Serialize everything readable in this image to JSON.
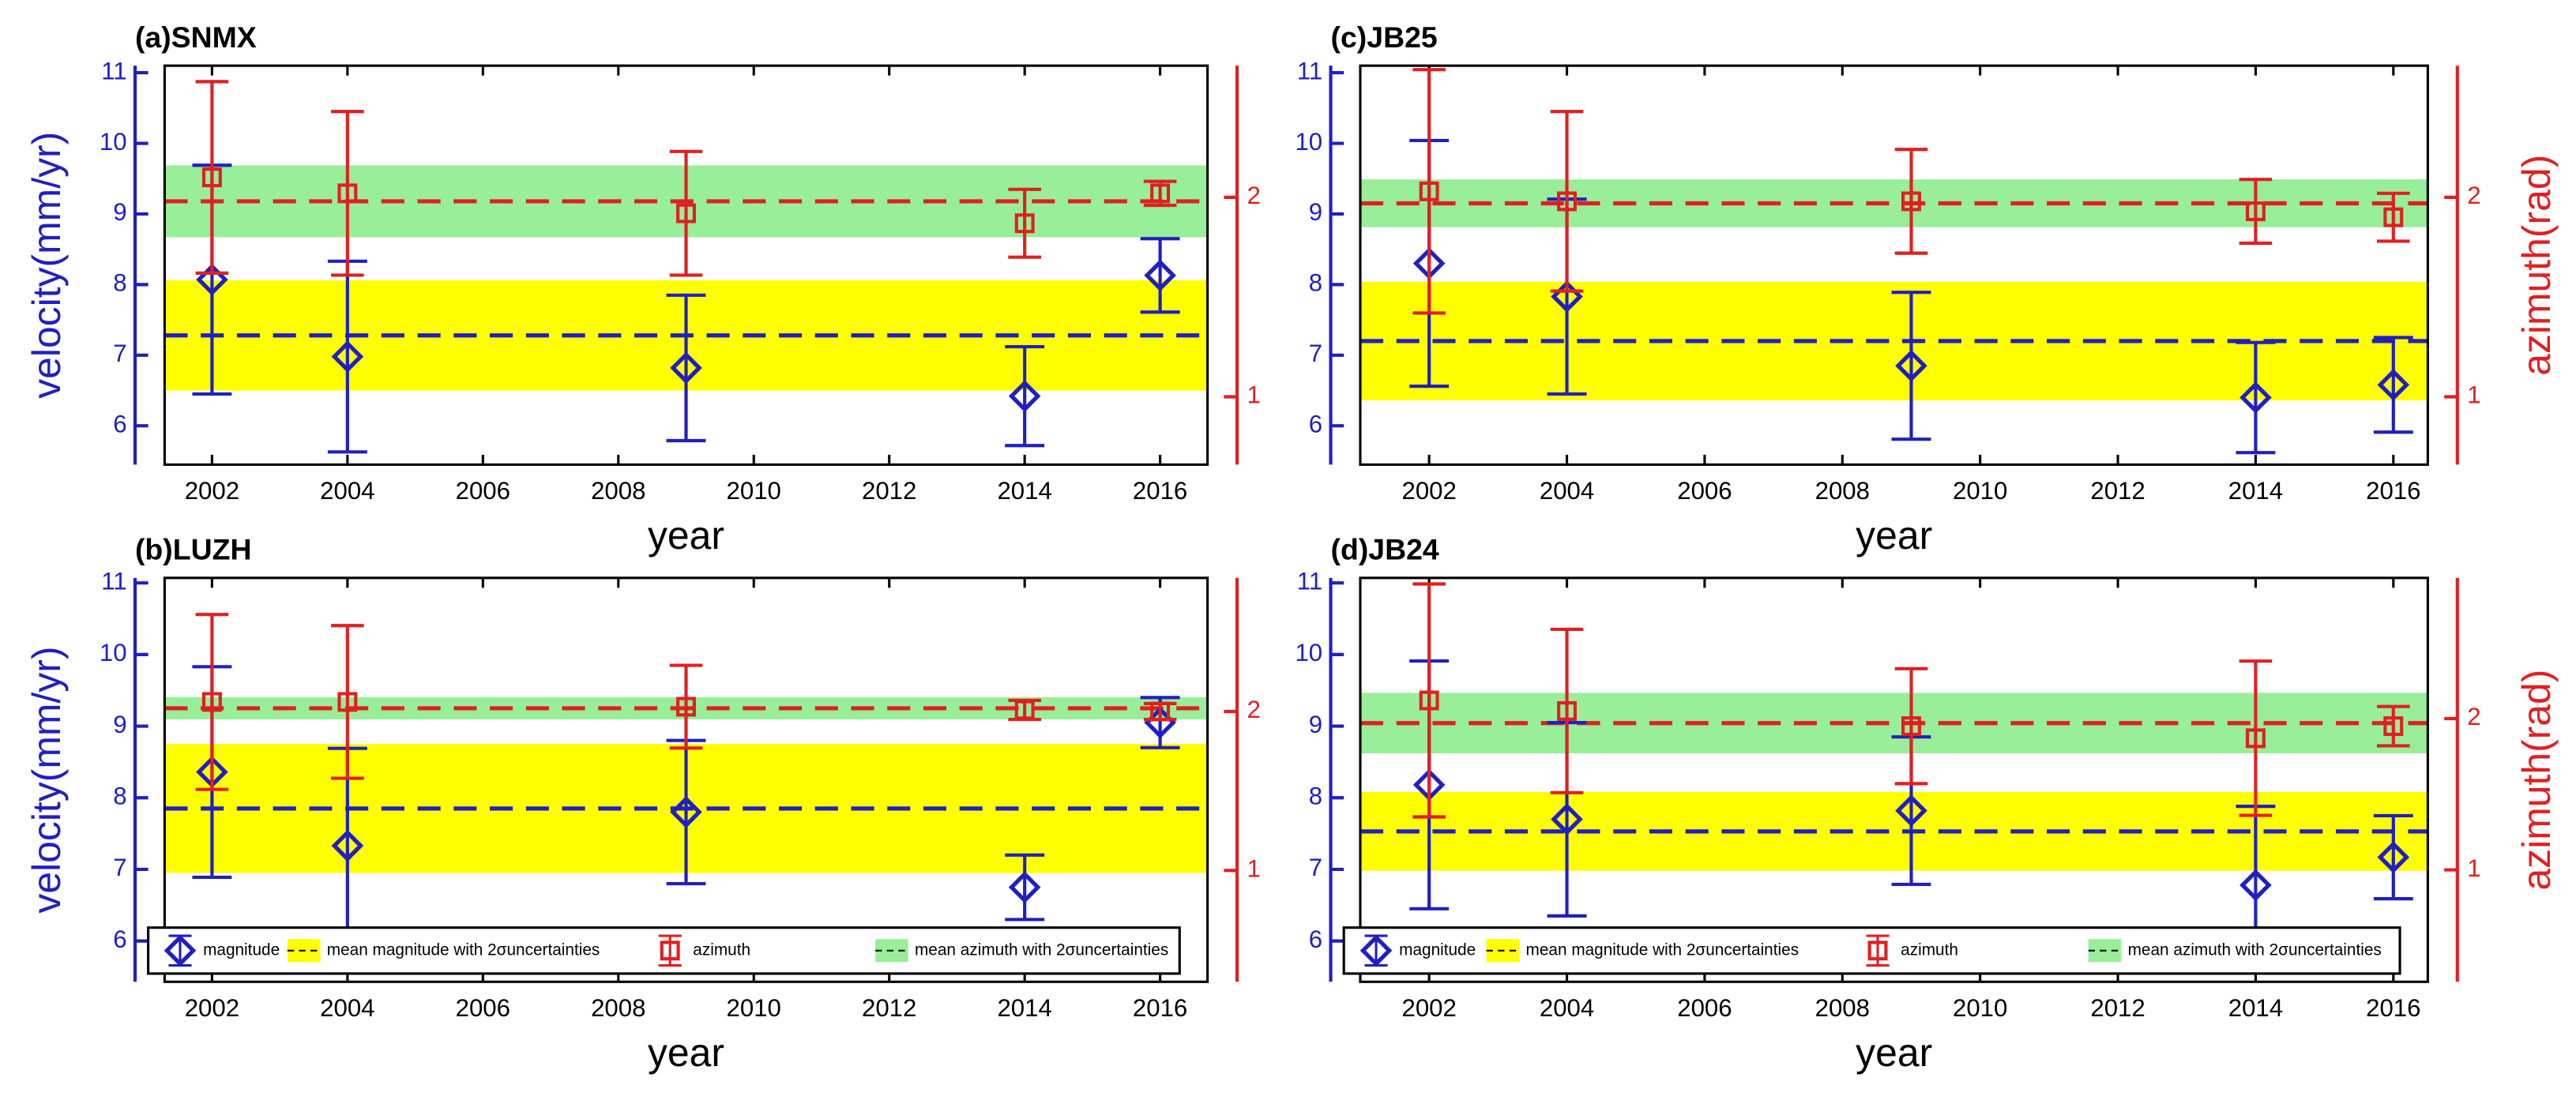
{
  "chart_data": [
    {
      "type": "errorbar",
      "title": "(a)SNMX",
      "xlabel": "year",
      "ylabel": "velocity(mm/yr)",
      "x": [
        2002,
        2004,
        2009,
        2014,
        2016
      ],
      "xlim": [
        2001.3,
        2016.7
      ],
      "xticks": [
        2002,
        2004,
        2006,
        2008,
        2010,
        2012,
        2014,
        2016
      ],
      "ylim": [
        5.45,
        11.1
      ],
      "yticks": [
        6,
        7,
        8,
        9,
        10,
        11
      ],
      "y2lim": [
        0.66,
        2.66
      ],
      "y2ticks": [
        1,
        2
      ],
      "series": [
        {
          "color": "#2020c0",
          "marker": "diamond",
          "values": [
            8.07,
            6.98,
            6.82,
            6.42,
            8.13
          ],
          "errors": [
            1.62,
            1.35,
            1.03,
            0.7,
            0.52
          ]
        },
        {
          "color": "#e02020",
          "marker": "square",
          "axis": "y2",
          "values": [
            2.1,
            2.02,
            1.92,
            1.87,
            2.02
          ],
          "errors": [
            0.48,
            0.41,
            0.31,
            0.17,
            0.06
          ]
        }
      ],
      "means": [
        {
          "color": "#2020c0",
          "band_color": "#ffff00",
          "value": 7.28,
          "uncertainty": 0.78
        },
        {
          "color": "#e02020",
          "band_color": "#99ee99",
          "axis": "y2",
          "value": 1.98,
          "uncertainty": 0.18
        }
      ]
    },
    {
      "type": "errorbar",
      "title": "(b)LUZH",
      "xlabel": "year",
      "ylabel": "velocity(mm/yr)",
      "x": [
        2002,
        2004,
        2009,
        2014,
        2016
      ],
      "xlim": [
        2001.3,
        2016.7
      ],
      "xticks": [
        2002,
        2004,
        2006,
        2008,
        2010,
        2012,
        2014,
        2016
      ],
      "ylim": [
        5.43,
        11.07
      ],
      "yticks": [
        6,
        7,
        8,
        9,
        10,
        11
      ],
      "y2lim": [
        0.3,
        2.84
      ],
      "y2ticks": [
        1,
        2
      ],
      "series": [
        {
          "name": "magnitude",
          "color": "#2020c0",
          "marker": "diamond",
          "values": [
            8.36,
            7.33,
            7.8,
            6.75,
            9.05
          ],
          "errors": [
            1.47,
            1.36,
            1.0,
            0.45,
            0.35
          ]
        },
        {
          "name": "azimuth",
          "color": "#e02020",
          "marker": "square",
          "axis": "y2",
          "values": [
            2.06,
            2.06,
            2.03,
            2.01,
            2.0
          ],
          "errors": [
            0.55,
            0.48,
            0.26,
            0.06,
            0.05
          ]
        }
      ],
      "means": [
        {
          "name": "mean magnitude with 2σuncertainties",
          "color": "#2020c0",
          "band_color": "#ffff00",
          "value": 7.85,
          "uncertainty": 0.9
        },
        {
          "name": "mean azimuth with 2σuncertainties",
          "color": "#e02020",
          "band_color": "#99ee99",
          "axis": "y2",
          "value": 2.02,
          "uncertainty": 0.07
        }
      ],
      "legend": "bottom"
    },
    {
      "type": "errorbar",
      "title": "(c)JB25",
      "xlabel": "year",
      "y2label": "azimuth(rad)",
      "x": [
        2002,
        2004,
        2009,
        2014,
        2016
      ],
      "xlim": [
        2001.0,
        2016.5
      ],
      "xticks": [
        2002,
        2004,
        2006,
        2008,
        2010,
        2012,
        2014,
        2016
      ],
      "ylim": [
        5.45,
        11.1
      ],
      "yticks": [
        6,
        7,
        8,
        9,
        10,
        11
      ],
      "y2lim": [
        0.66,
        2.66
      ],
      "y2ticks": [
        1,
        2
      ],
      "series": [
        {
          "color": "#2020c0",
          "marker": "diamond",
          "values": [
            8.3,
            7.83,
            6.85,
            6.4,
            6.58
          ],
          "errors": [
            1.74,
            1.38,
            1.04,
            0.78,
            0.67
          ]
        },
        {
          "color": "#e02020",
          "marker": "square",
          "axis": "y2",
          "values": [
            2.03,
            1.98,
            1.98,
            1.93,
            1.9
          ],
          "errors": [
            0.61,
            0.45,
            0.26,
            0.16,
            0.12
          ]
        }
      ],
      "means": [
        {
          "color": "#2020c0",
          "band_color": "#ffff00",
          "value": 7.2,
          "uncertainty": 0.84
        },
        {
          "color": "#e02020",
          "band_color": "#99ee99",
          "axis": "y2",
          "value": 1.97,
          "uncertainty": 0.12
        }
      ]
    },
    {
      "type": "errorbar",
      "title": "(d)JB24",
      "xlabel": "year",
      "y2label": "azimuth(rad)",
      "x": [
        2002,
        2004,
        2009,
        2014,
        2016
      ],
      "xlim": [
        2001.0,
        2016.5
      ],
      "xticks": [
        2002,
        2004,
        2006,
        2008,
        2010,
        2012,
        2014,
        2016
      ],
      "ylim": [
        5.43,
        11.07
      ],
      "yticks": [
        6,
        7,
        8,
        9,
        10,
        11
      ],
      "y2lim": [
        0.26,
        2.93
      ],
      "y2ticks": [
        1,
        2
      ],
      "series": [
        {
          "name": "magnitude",
          "color": "#2020c0",
          "marker": "diamond",
          "values": [
            8.18,
            7.7,
            7.82,
            6.78,
            7.17
          ],
          "errors": [
            1.73,
            1.35,
            1.03,
            1.1,
            0.58
          ]
        },
        {
          "name": "azimuth",
          "color": "#e02020",
          "marker": "square",
          "axis": "y2",
          "values": [
            2.12,
            2.05,
            1.95,
            1.87,
            1.95
          ],
          "errors": [
            0.77,
            0.54,
            0.38,
            0.51,
            0.13
          ]
        }
      ],
      "means": [
        {
          "name": "mean magnitude with 2σuncertainties",
          "color": "#2020c0",
          "band_color": "#ffff00",
          "value": 7.53,
          "uncertainty": 0.55
        },
        {
          "name": "mean azimuth with 2σuncertainties",
          "color": "#e02020",
          "band_color": "#99ee99",
          "axis": "y2",
          "value": 1.97,
          "uncertainty": 0.2
        }
      ],
      "legend": "bottom"
    }
  ]
}
